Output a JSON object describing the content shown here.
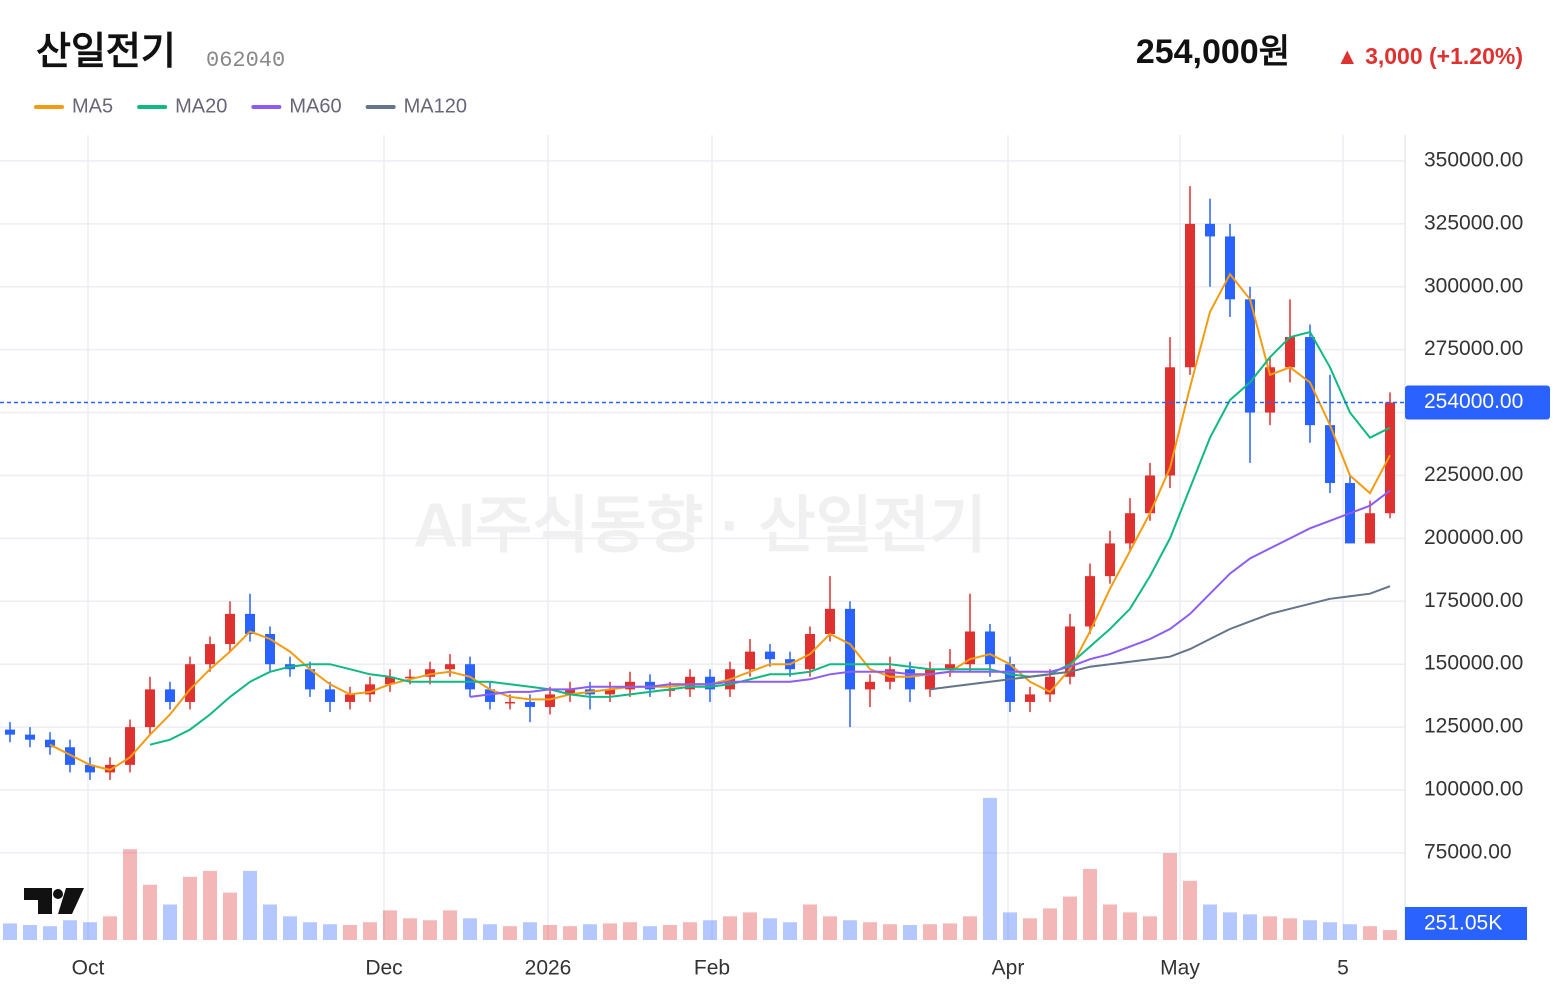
{
  "header": {
    "title": "산일전기",
    "code": "062040",
    "price": "254,000원",
    "change": "▲ 3,000 (+1.20%)"
  },
  "chart_data": {
    "type": "candlestick",
    "watermark": "AI주식동향 · 산일전기",
    "up_color": "#e03131",
    "down_color": "#2962ff",
    "xlim": [
      -0.5,
      69.75
    ],
    "xticks": [
      {
        "value": 3.9,
        "label": "Oct"
      },
      {
        "value": 18.7,
        "label": "Dec"
      },
      {
        "value": 26.9,
        "label": "2026"
      },
      {
        "value": 35.1,
        "label": "Feb"
      },
      {
        "value": 49.9,
        "label": "Apr"
      },
      {
        "value": 58.5,
        "label": "May"
      },
      {
        "value": 66.65,
        "label": "5"
      }
    ],
    "ylim": [
      40400,
      360300
    ],
    "yticks": [
      {
        "value": 75000,
        "label": "75000.00"
      },
      {
        "value": 100000,
        "label": "100000.00"
      },
      {
        "value": 125000,
        "label": "125000.00"
      },
      {
        "value": 150000,
        "label": "150000.00"
      },
      {
        "value": 175000,
        "label": "175000.00"
      },
      {
        "value": 200000,
        "label": "200000.00"
      },
      {
        "value": 225000,
        "label": "225000.00"
      },
      {
        "value": 250000,
        "label": "250000.00"
      },
      {
        "value": 275000,
        "label": "275000.00"
      },
      {
        "value": 300000,
        "label": "300000.00"
      },
      {
        "value": 325000,
        "label": "325000.00"
      },
      {
        "value": 350000,
        "label": "350000.00"
      }
    ],
    "grid": true,
    "last_price": {
      "value": 254000,
      "label": "254000.00"
    },
    "volume_lim": [
      0,
      3800000
    ],
    "volume_label": "251.05K",
    "open": [
      124000,
      122000,
      120000,
      117000,
      110000,
      107000,
      110000,
      125000,
      140000,
      135000,
      150000,
      158000,
      170000,
      162000,
      150000,
      148000,
      140000,
      135000,
      138000,
      142000,
      145000,
      145000,
      148000,
      150000,
      140000,
      135000,
      135000,
      133000,
      138000,
      140000,
      138000,
      140000,
      143000,
      140000,
      140000,
      145000,
      140000,
      148000,
      155000,
      152000,
      148000,
      162000,
      172000,
      140000,
      143000,
      148000,
      140000,
      148000,
      150000,
      163000,
      150000,
      135000,
      138000,
      145000,
      165000,
      185000,
      198000,
      210000,
      225000,
      268000,
      325000,
      320000,
      295000,
      250000,
      268000,
      280000,
      245000,
      222000,
      198000,
      210000
    ],
    "high": [
      127000,
      125000,
      123000,
      120000,
      113000,
      113000,
      128000,
      145000,
      143000,
      153000,
      161000,
      175000,
      178000,
      165000,
      153000,
      151000,
      143000,
      141000,
      145000,
      148000,
      148000,
      151000,
      154000,
      153000,
      143000,
      138000,
      138000,
      141000,
      143000,
      143000,
      143000,
      147000,
      146000,
      143000,
      148000,
      148000,
      151000,
      160000,
      158000,
      155000,
      165000,
      185000,
      175000,
      146000,
      153000,
      151000,
      151000,
      156000,
      178000,
      166000,
      153000,
      141000,
      148000,
      170000,
      190000,
      203000,
      216000,
      230000,
      280000,
      340000,
      335000,
      325000,
      300000,
      272000,
      295000,
      285000,
      265000,
      225000,
      215000,
      258000
    ],
    "low": [
      119000,
      117000,
      114000,
      107000,
      104000,
      104000,
      107000,
      122000,
      132000,
      132000,
      147000,
      155000,
      159000,
      147000,
      145000,
      137000,
      131000,
      132000,
      135000,
      139000,
      142000,
      142000,
      145000,
      137000,
      132000,
      132000,
      127000,
      130000,
      135000,
      132000,
      135000,
      137000,
      137000,
      137000,
      137000,
      135000,
      137000,
      145000,
      149000,
      145000,
      145000,
      159000,
      125000,
      133000,
      140000,
      135000,
      137000,
      145000,
      147000,
      145000,
      131000,
      131000,
      135000,
      142000,
      162000,
      182000,
      195000,
      207000,
      220000,
      265000,
      300000,
      288000,
      230000,
      245000,
      262000,
      238000,
      218000,
      198000,
      199000,
      208000
    ],
    "close": [
      122000,
      120000,
      117000,
      110000,
      107000,
      110000,
      125000,
      140000,
      135000,
      150000,
      158000,
      170000,
      162000,
      150000,
      148000,
      140000,
      135000,
      138000,
      142000,
      145000,
      145000,
      148000,
      150000,
      140000,
      135000,
      135000,
      133000,
      138000,
      140000,
      138000,
      140000,
      143000,
      140000,
      140000,
      145000,
      140000,
      148000,
      155000,
      152000,
      148000,
      162000,
      172000,
      140000,
      143000,
      148000,
      140000,
      148000,
      150000,
      163000,
      150000,
      135000,
      138000,
      145000,
      165000,
      185000,
      198000,
      210000,
      225000,
      268000,
      325000,
      320000,
      295000,
      250000,
      268000,
      280000,
      245000,
      222000,
      198000,
      210000,
      254000
    ],
    "volume": [
      420000,
      380000,
      350000,
      500000,
      450000,
      600000,
      2300000,
      1400000,
      900000,
      1600000,
      1750000,
      1200000,
      1750000,
      900000,
      600000,
      450000,
      400000,
      380000,
      450000,
      750000,
      550000,
      500000,
      750000,
      550000,
      400000,
      350000,
      450000,
      380000,
      350000,
      400000,
      420000,
      450000,
      350000,
      380000,
      450000,
      500000,
      600000,
      700000,
      550000,
      450000,
      900000,
      600000,
      500000,
      450000,
      400000,
      380000,
      400000,
      420000,
      600000,
      3600000,
      700000,
      550000,
      800000,
      1100000,
      1800000,
      900000,
      700000,
      600000,
      2200000,
      1500000,
      900000,
      700000,
      650000,
      600000,
      550000,
      500000,
      450000,
      400000,
      350000,
      251050
    ],
    "series": [
      {
        "name": "MA5",
        "color": "#f39c12",
        "values": [
          null,
          null,
          118000,
          114000,
          110000,
          108000,
          113000,
          122000,
          130000,
          140000,
          148000,
          155000,
          163000,
          160000,
          155000,
          148000,
          142000,
          138000,
          139000,
          142000,
          144000,
          146000,
          147000,
          145000,
          140000,
          137000,
          136000,
          136000,
          138000,
          139000,
          140000,
          141000,
          141000,
          141000,
          142000,
          142000,
          144000,
          147000,
          150000,
          150000,
          154000,
          162000,
          158000,
          148000,
          145000,
          145000,
          146000,
          147000,
          152000,
          154000,
          150000,
          143000,
          139000,
          148000,
          163000,
          180000,
          195000,
          210000,
          228000,
          260000,
          290000,
          305000,
          295000,
          265000,
          268000,
          262000,
          245000,
          225000,
          218000,
          233000
        ]
      },
      {
        "name": "MA20",
        "color": "#10b981",
        "values": [
          null,
          null,
          null,
          null,
          null,
          null,
          null,
          118000,
          120000,
          124000,
          130000,
          137000,
          143000,
          147000,
          149000,
          150000,
          150000,
          148000,
          146000,
          145000,
          143000,
          143000,
          143000,
          143000,
          143000,
          142000,
          141000,
          140000,
          138000,
          137000,
          137000,
          138000,
          139000,
          140000,
          141000,
          141000,
          142000,
          144000,
          146000,
          146000,
          147000,
          150000,
          150000,
          150000,
          150000,
          149000,
          148000,
          148000,
          148000,
          148000,
          146000,
          145000,
          146000,
          150000,
          157000,
          164000,
          172000,
          185000,
          200000,
          220000,
          240000,
          255000,
          262000,
          272000,
          280000,
          282000,
          268000,
          250000,
          240000,
          244000
        ]
      },
      {
        "name": "MA60",
        "color": "#8b5cf6",
        "values": [
          null,
          null,
          null,
          null,
          null,
          null,
          null,
          null,
          null,
          null,
          null,
          null,
          null,
          null,
          null,
          null,
          null,
          null,
          null,
          null,
          null,
          null,
          null,
          137000,
          138000,
          139000,
          139000,
          140000,
          140000,
          141000,
          141000,
          141000,
          141000,
          142000,
          142000,
          142000,
          143000,
          143000,
          143000,
          143000,
          144000,
          146000,
          147000,
          147000,
          147000,
          146000,
          146000,
          147000,
          147000,
          147000,
          147000,
          147000,
          147000,
          149000,
          152000,
          154000,
          157000,
          160000,
          164000,
          170000,
          178000,
          186000,
          192000,
          196000,
          200000,
          204000,
          207000,
          210000,
          213000,
          219000
        ]
      },
      {
        "name": "MA120",
        "color": "#64748b",
        "values": [
          null,
          null,
          null,
          null,
          null,
          null,
          null,
          null,
          null,
          null,
          null,
          null,
          null,
          null,
          null,
          null,
          null,
          null,
          null,
          null,
          null,
          null,
          null,
          null,
          null,
          null,
          null,
          null,
          null,
          null,
          null,
          null,
          null,
          null,
          null,
          null,
          null,
          null,
          null,
          null,
          null,
          null,
          null,
          null,
          null,
          null,
          140000,
          141000,
          142000,
          143000,
          144000,
          145000,
          146000,
          147000,
          149000,
          150000,
          151000,
          152000,
          153000,
          156000,
          160000,
          164000,
          167000,
          170000,
          172000,
          174000,
          176000,
          177000,
          178000,
          181000
        ]
      }
    ]
  }
}
